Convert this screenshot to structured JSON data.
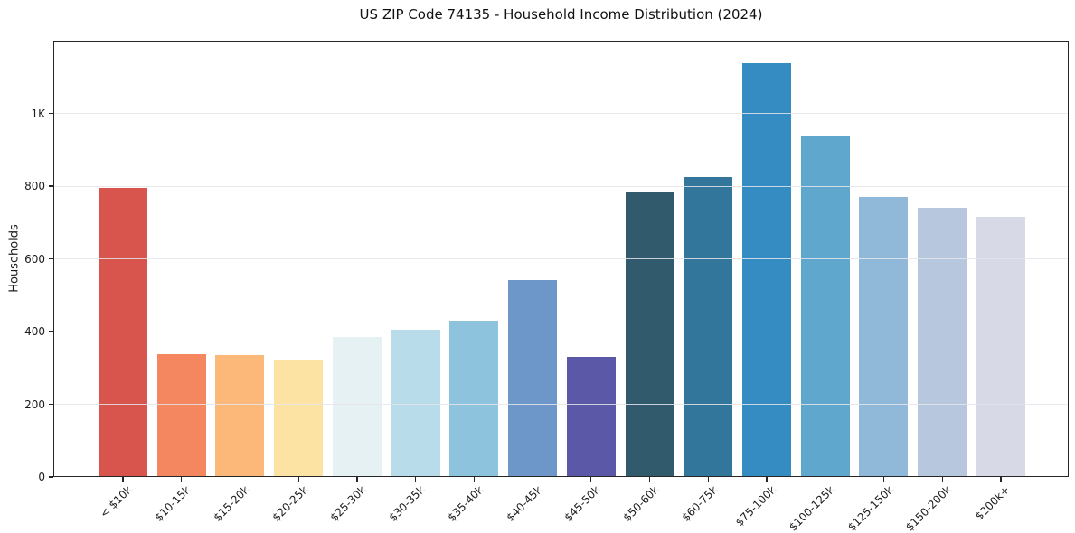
{
  "title": "US ZIP Code 74135 - Household Income Distribution (2024)",
  "chart_data": {
    "type": "bar",
    "title": "US ZIP Code 74135 - Household Income Distribution (2024)",
    "xlabel": "",
    "ylabel": "Households",
    "ylim": [
      0,
      1200
    ],
    "grid": "horizontal",
    "legend": "none",
    "background_color": "#ffffff",
    "gridline_color": "#e5e5ea",
    "spine_color": "#262626",
    "categories": [
      "< $10k",
      "$10-15k",
      "$15-20k",
      "$20-25k",
      "$25-30k",
      "$30-35k",
      "$35-40k",
      "$40-45k",
      "$45-50k",
      "$50-60k",
      "$60-75k",
      "$75-100k",
      "$100-125k",
      "$125-150k",
      "$150-200k",
      "$200k+"
    ],
    "values": [
      795,
      339,
      335,
      322,
      385,
      406,
      429,
      541,
      331,
      786,
      826,
      1139,
      940,
      770,
      741,
      716
    ],
    "bar_colors": [
      "#d8554e",
      "#f4875f",
      "#fbb878",
      "#fde3a3",
      "#e6f1f4",
      "#b8dcea",
      "#8ec3dd",
      "#6d96c9",
      "#5c58a8",
      "#315a6d",
      "#33769c",
      "#348cc3",
      "#5fa7cc",
      "#90b8d8",
      "#b7c8de",
      "#d7d9e6"
    ],
    "yticks": [
      {
        "value": 0,
        "label": "0"
      },
      {
        "value": 200,
        "label": "200"
      },
      {
        "value": 400,
        "label": "400"
      },
      {
        "value": 600,
        "label": "600"
      },
      {
        "value": 800,
        "label": "800"
      },
      {
        "value": 1000,
        "label": "1K"
      }
    ]
  }
}
